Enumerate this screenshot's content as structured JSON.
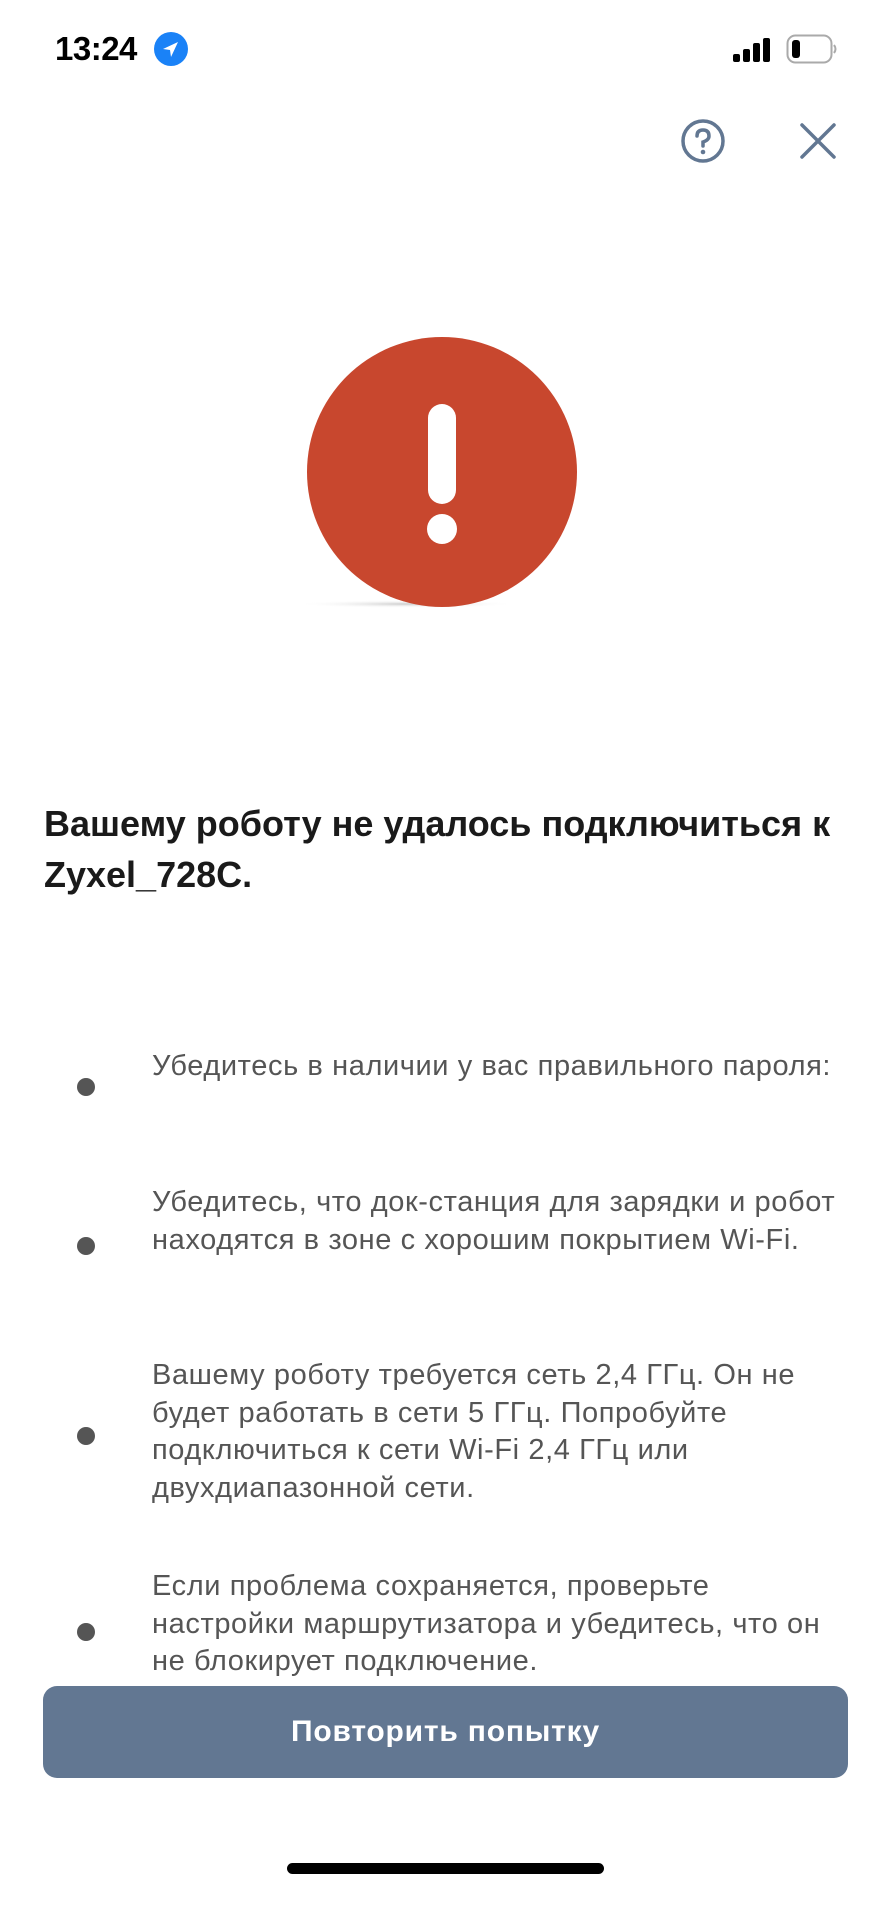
{
  "status_bar": {
    "time": "13:24",
    "location_icon": "location-arrow-icon",
    "signal_icon": "cellular-signal-icon",
    "battery_icon": "battery-low-icon",
    "battery_level": 0.2
  },
  "header": {
    "help_icon": "question-circle-icon",
    "close_icon": "close-icon"
  },
  "alert": {
    "icon": "exclamation-circle-icon",
    "color": "#c8472e"
  },
  "title": "Вашему роботу не удалось подключиться к Zyxel_728C.",
  "tips": [
    {
      "text": "Убедитесь в наличии у вас правильного пароля:"
    },
    {
      "text": "Убедитесь, что док-станция для зарядки и робот находятся в зоне с хорошим покрытием Wi-Fi."
    },
    {
      "text": "Вашему роботу требуется сеть 2,4 ГГц. Он не будет работать в сети 5 ГГц. Попробуйте подключиться к сети Wi-Fi 2,4 ГГц или двухдиапазонной сети."
    },
    {
      "text": "Если проблема сохраняется, проверьте настройки маршрутизатора и убедитесь, что он не блокирует подключение."
    }
  ],
  "retry_button": {
    "label": "Повторить попытку",
    "color": "#627792"
  }
}
